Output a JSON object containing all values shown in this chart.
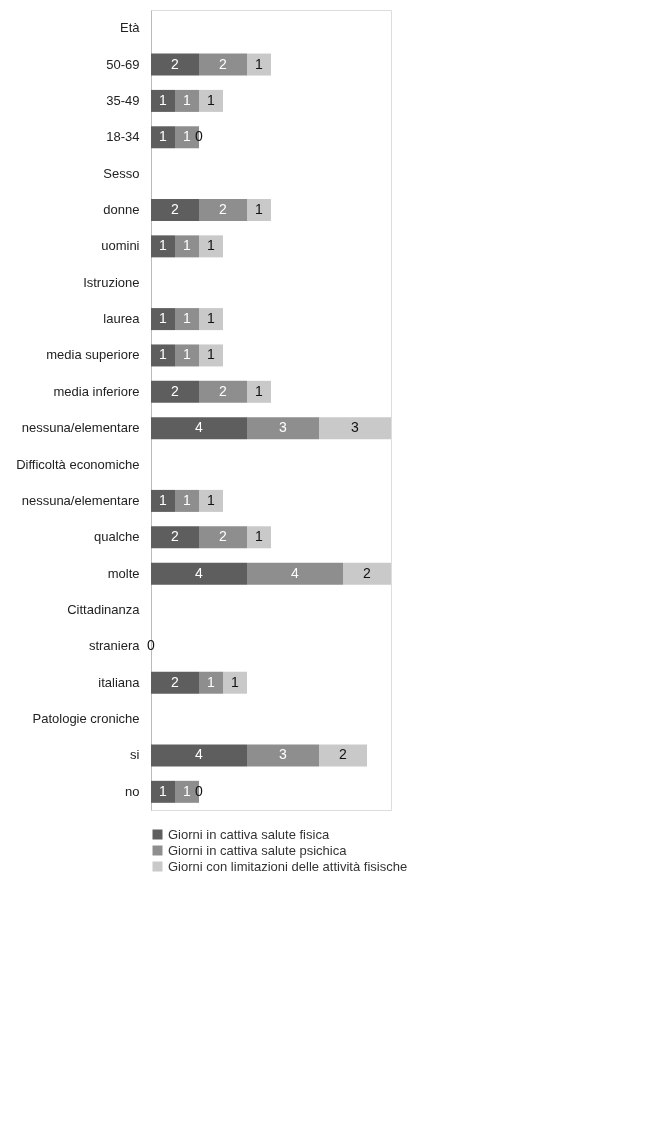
{
  "chart_data": {
    "type": "bar",
    "orientation": "horizontal",
    "stacked": true,
    "categories": [
      "Età",
      "50-69",
      "35-49",
      "18-34",
      "Sesso",
      "donne",
      "uomini",
      "Istruzione",
      "laurea",
      "media superiore",
      "media inferiore",
      "nessuna/elementare",
      "Difficoltà economiche",
      "nessuna/elementare",
      "qualche",
      "molte",
      "Cittadinanza",
      "straniera",
      "italiana",
      "Patologie croniche",
      "si",
      "no"
    ],
    "series": [
      {
        "name": "Giorni in cattiva salute fisica",
        "color": "#5e5e5e",
        "values": [
          null,
          2,
          1,
          1,
          null,
          2,
          1,
          null,
          1,
          1,
          2,
          4,
          null,
          1,
          2,
          4,
          null,
          0,
          2,
          null,
          4,
          1
        ],
        "value_labels": [
          null,
          "2",
          "1",
          "1",
          null,
          "2",
          "1",
          null,
          "1",
          "1",
          "2",
          "4",
          null,
          "1",
          "2",
          "4",
          null,
          null,
          "2",
          null,
          "4",
          "1"
        ]
      },
      {
        "name": "Giorni in cattiva salute psichica",
        "color": "#8e8e8e",
        "values": [
          null,
          2,
          1,
          1,
          null,
          2,
          1,
          null,
          1,
          1,
          2,
          3,
          null,
          1,
          2,
          4,
          null,
          0,
          1,
          null,
          3,
          1
        ],
        "value_labels": [
          null,
          "2",
          "1",
          "1",
          null,
          "2",
          "1",
          null,
          "1",
          "1",
          "2",
          "3",
          null,
          "1",
          "2",
          "4",
          null,
          null,
          "1",
          null,
          "3",
          "1"
        ]
      },
      {
        "name": "Giorni con limitazioni delle attività fisische",
        "color": "#c9c9c9",
        "values": [
          null,
          1,
          1,
          0,
          null,
          1,
          1,
          null,
          1,
          1,
          1,
          3,
          null,
          1,
          1,
          2,
          null,
          0,
          1,
          null,
          2,
          0
        ],
        "value_labels": [
          null,
          "1",
          "1",
          "0",
          null,
          "1",
          "1",
          null,
          "1",
          "1",
          "1",
          "3",
          null,
          "1",
          "1",
          "2",
          null,
          "0",
          "1",
          null,
          "2",
          "0"
        ]
      }
    ],
    "legend": "bottom",
    "grid": false
  }
}
